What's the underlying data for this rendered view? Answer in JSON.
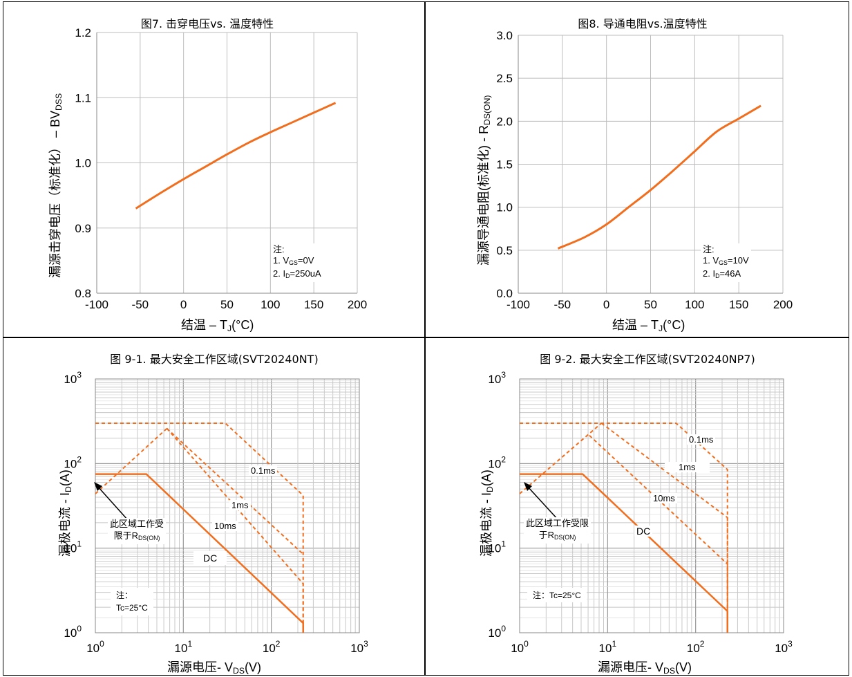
{
  "chart_data": [
    {
      "type": "line",
      "title": "图7. 击穿电压vs. 温度特性",
      "ylabel_main": "漏源击穿电压（标准化） – BV",
      "ylabel_sub": "DSS",
      "xlabel_main": "结温  – T",
      "xlabel_sub": "J",
      "xlabel_tail": "(°C)",
      "xlim": [
        -100,
        200
      ],
      "ylim": [
        0.8,
        1.2
      ],
      "xticks": [
        "-100",
        "-50",
        "0",
        "50",
        "100",
        "150",
        "200"
      ],
      "yticks": [
        "0.8",
        "0.9",
        "1.0",
        "1.1",
        "1.2"
      ],
      "grid": true,
      "note_lines": [
        "注:",
        "1. V",
        "GS",
        "=0V",
        "2. I",
        "D",
        "=250uA"
      ],
      "series": [
        {
          "color": "#f06e1e",
          "x": [
            -55,
            -25,
            0,
            25,
            50,
            75,
            100,
            125,
            150,
            175
          ],
          "y": [
            0.93,
            0.955,
            0.975,
            0.994,
            1.013,
            1.031,
            1.047,
            1.062,
            1.077,
            1.092
          ]
        }
      ]
    },
    {
      "type": "line",
      "title": "图8. 导通电阻vs.温度特性",
      "ylabel_main": "漏源导通电阻(标准化) - R",
      "ylabel_sub": "DS(ON)",
      "xlabel_main": "结温  – T",
      "xlabel_sub": "J",
      "xlabel_tail": "(°C)",
      "xlim": [
        -100,
        200
      ],
      "ylim": [
        0,
        3
      ],
      "xticks": [
        "-100",
        "-50",
        "0",
        "50",
        "100",
        "150",
        "200"
      ],
      "yticks": [
        "0.0",
        "0.5",
        "1.0",
        "1.5",
        "2.0",
        "2.5",
        "3.0"
      ],
      "grid": true,
      "note_lines": [
        "注:",
        "1. V",
        "GS",
        "=10V",
        "2. I",
        "D",
        "=46A"
      ],
      "series": [
        {
          "color": "#f06e1e",
          "x": [
            -55,
            -25,
            0,
            25,
            50,
            75,
            100,
            125,
            150,
            175
          ],
          "y": [
            0.52,
            0.65,
            0.8,
            1.0,
            1.2,
            1.42,
            1.65,
            1.88,
            2.03,
            2.18
          ]
        }
      ]
    },
    {
      "type": "line",
      "title": "图 9-1. 最大安全工作区域(SVT20240NT)",
      "ylabel_main": "漏极电流 - I",
      "ylabel_sub": "D",
      "ylabel_tail": "(A)",
      "xlabel_main": "漏源电压- V",
      "xlabel_sub": "DS",
      "xlabel_tail": "(V)",
      "xscale": "log",
      "yscale": "log",
      "xlim": [
        1,
        1000
      ],
      "ylim": [
        1,
        1000
      ],
      "xticks": [
        "10",
        "10",
        "10",
        "10"
      ],
      "xtick_exp": [
        "0",
        "1",
        "2",
        "3"
      ],
      "yticks": [
        "10",
        "10",
        "10",
        "10"
      ],
      "ytick_exp": [
        "0",
        "1",
        "2",
        "3"
      ],
      "grid": true,
      "labels": {
        "ms01": "0.1ms",
        "ms1": "1ms",
        "ms10": "10ms",
        "dc": "DC",
        "limit1": "此区域工作受",
        "limit2": "限于R",
        "limit_sub": "DS(ON)",
        "note1": "注：",
        "note2": "Tc=25°C"
      },
      "series": [
        {
          "name": "DC",
          "style": "solid",
          "x": [
            1,
            3.8,
            230,
            230
          ],
          "y": [
            75,
            75,
            1.3,
            1
          ]
        },
        {
          "name": "10ms",
          "style": "dashed",
          "x": [
            6.5,
            230,
            230
          ],
          "y": [
            260,
            3.8,
            1
          ]
        },
        {
          "name": "1ms",
          "style": "dashed",
          "x": [
            6.5,
            230
          ],
          "y": [
            260,
            8.5
          ]
        },
        {
          "name": "0.1ms",
          "style": "dashed",
          "x": [
            1,
            30,
            230,
            230
          ],
          "y": [
            300,
            300,
            42,
            1
          ]
        },
        {
          "name": "RDS(ON) limit",
          "style": "dashed",
          "x": [
            1,
            6.5
          ],
          "y": [
            44,
            260
          ]
        }
      ]
    },
    {
      "type": "line",
      "title": "图 9-2. 最大安全工作区域(SVT20240NP7)",
      "ylabel_main": "漏极电流 - I",
      "ylabel_sub": "D",
      "ylabel_tail": "(A)",
      "xlabel_main": "漏源电压- V",
      "xlabel_sub": "DS",
      "xlabel_tail": "(V)",
      "xscale": "log",
      "yscale": "log",
      "xlim": [
        1,
        1000
      ],
      "ylim": [
        1,
        1000
      ],
      "xticks": [
        "10",
        "10",
        "10",
        "10"
      ],
      "xtick_exp": [
        "0",
        "1",
        "2",
        "3"
      ],
      "yticks": [
        "10",
        "10",
        "10",
        "10"
      ],
      "ytick_exp": [
        "0",
        "1",
        "2",
        "3"
      ],
      "grid": true,
      "labels": {
        "ms01": "0.1ms",
        "ms1": "1ms",
        "ms10": "10ms",
        "dc": "DC",
        "limit1": "此区域工作受限",
        "limit2": "于R",
        "limit_sub": "DS(ON)",
        "note1": "注：Tc=25°C"
      },
      "series": [
        {
          "name": "DC",
          "style": "solid",
          "x": [
            1,
            5.2,
            230,
            230
          ],
          "y": [
            75,
            75,
            1.8,
            1
          ]
        },
        {
          "name": "10ms",
          "style": "dashed",
          "x": [
            6.2,
            230,
            230
          ],
          "y": [
            215,
            6.5,
            1
          ]
        },
        {
          "name": "1ms",
          "style": "dashed",
          "x": [
            8.5,
            230,
            230
          ],
          "y": [
            300,
            23,
            1
          ]
        },
        {
          "name": "0.1ms",
          "style": "dashed",
          "x": [
            1,
            60,
            230,
            230
          ],
          "y": [
            300,
            300,
            85,
            1
          ]
        },
        {
          "name": "RDS(ON) limit",
          "style": "dashed",
          "x": [
            1,
            8.5
          ],
          "y": [
            44,
            300
          ]
        }
      ]
    }
  ]
}
